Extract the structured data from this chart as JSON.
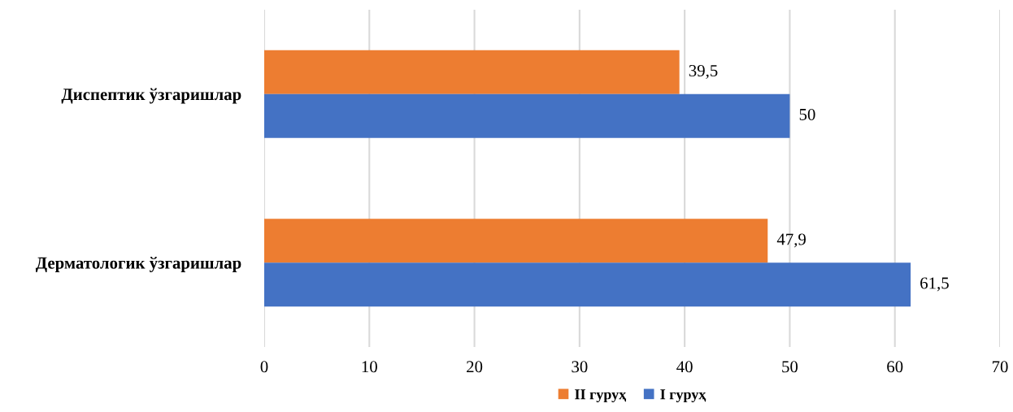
{
  "chart_data": {
    "type": "bar",
    "orientation": "horizontal",
    "categories": [
      "Диспептик ўзгаришлар",
      "Дерматологик ўзгаришлар"
    ],
    "series": [
      {
        "name": "II гуруҳ",
        "color": "#ed7d31",
        "values": [
          39.5,
          47.9
        ],
        "value_labels": [
          "39,5",
          "47,9"
        ]
      },
      {
        "name": "I гуруҳ",
        "color": "#4472c4",
        "values": [
          50,
          61.5
        ],
        "value_labels": [
          "50",
          "61,5"
        ]
      }
    ],
    "xlim": [
      0,
      70
    ],
    "xticks": [
      0,
      10,
      20,
      30,
      40,
      50,
      60,
      70
    ],
    "grid": "x",
    "legend": "bottom"
  }
}
